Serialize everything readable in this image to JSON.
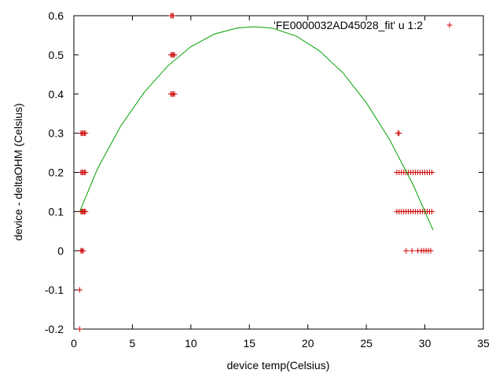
{
  "chart_data": {
    "type": "scatter",
    "xlabel": "device temp(Celsius)",
    "ylabel": "device - deltaOHM (Celsius)",
    "xlim": [
      0,
      35
    ],
    "ylim": [
      -0.2,
      0.6
    ],
    "xticks": [
      0,
      5,
      10,
      15,
      20,
      25,
      30,
      35
    ],
    "yticks": [
      -0.2,
      -0.1,
      0,
      0.1,
      0.2,
      0.3,
      0.4,
      0.5,
      0.6
    ],
    "xtick_labels": [
      "0",
      "5",
      "10",
      "15",
      "20",
      "25",
      "30",
      "35"
    ],
    "ytick_labels": [
      "-0.2",
      "-0.1",
      "0",
      "0.1",
      "0.2",
      "0.3",
      "0.4",
      "0.5",
      "0.6"
    ],
    "grid": false,
    "legend_position": "top-right",
    "series": [
      {
        "name": "'FE0000032AD45028_fit' u 1:2",
        "kind": "points",
        "marker": "plus",
        "color": "#cc0000",
        "x": [
          0.5,
          0.5,
          0.6,
          0.6,
          0.7,
          0.8,
          0.6,
          0.7,
          0.8,
          0.9,
          1.0,
          0.6,
          0.7,
          0.8,
          0.9,
          1.0,
          0.6,
          0.7,
          0.8,
          0.9,
          1.0,
          0.6,
          0.7,
          0.8,
          0.9,
          8.3,
          8.4,
          8.5,
          8.4,
          8.5,
          8.3,
          8.4,
          8.5,
          8.6,
          8.3,
          8.4,
          8.5,
          8.6,
          27.7,
          27.8,
          27.6,
          27.8,
          28.0,
          28.2,
          28.4,
          28.6,
          28.8,
          29.0,
          29.2,
          29.4,
          29.6,
          29.8,
          30.0,
          30.2,
          30.4,
          30.6,
          27.6,
          27.8,
          28.0,
          28.2,
          28.4,
          28.6,
          28.8,
          29.0,
          29.2,
          29.4,
          29.6,
          29.8,
          30.0,
          30.2,
          30.4,
          30.6,
          28.4,
          28.9,
          29.4,
          29.7,
          29.9,
          30.1,
          30.3,
          30.5
        ],
        "y": [
          -0.2,
          -0.1,
          0,
          0,
          0,
          0,
          0.1,
          0.1,
          0.1,
          0.1,
          0.1,
          0.2,
          0.2,
          0.2,
          0.2,
          0.2,
          0.3,
          0.3,
          0.3,
          0.3,
          0.3,
          0.1,
          0.1,
          0.1,
          0.1,
          0.6,
          0.6,
          0.6,
          0.5,
          0.5,
          0.5,
          0.5,
          0.5,
          0.5,
          0.4,
          0.4,
          0.4,
          0.4,
          0.3,
          0.3,
          0.2,
          0.2,
          0.2,
          0.2,
          0.2,
          0.2,
          0.2,
          0.2,
          0.2,
          0.2,
          0.2,
          0.2,
          0.2,
          0.2,
          0.2,
          0.2,
          0.1,
          0.1,
          0.1,
          0.1,
          0.1,
          0.1,
          0.1,
          0.1,
          0.1,
          0.1,
          0.1,
          0.1,
          0.1,
          0.1,
          0.1,
          0.1,
          0,
          0,
          0,
          0,
          0,
          0,
          0,
          0
        ]
      },
      {
        "kind": "line",
        "color": "#00a000",
        "x": [
          0.5,
          2,
          4,
          6,
          8,
          10,
          12,
          14,
          15.5,
          17,
          19,
          21,
          23,
          25,
          27,
          29,
          30.7
        ],
        "y": [
          0.1,
          0.208,
          0.318,
          0.404,
          0.471,
          0.521,
          0.553,
          0.569,
          0.572,
          0.568,
          0.548,
          0.51,
          0.454,
          0.378,
          0.283,
          0.168,
          0.053
        ]
      }
    ]
  }
}
